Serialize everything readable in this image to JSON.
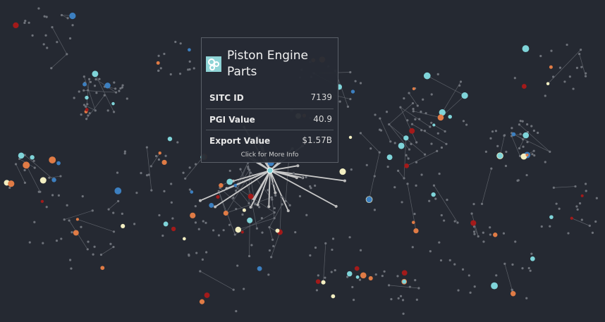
{
  "tooltip": {
    "title": "Piston Engine Parts",
    "rows": [
      {
        "label": "SITC ID",
        "value": "7139"
      },
      {
        "label": "PGI Value",
        "value": "40.9"
      },
      {
        "label": "Export Value",
        "value": "$1.57B"
      }
    ],
    "footer": "Click for More Info"
  }
}
